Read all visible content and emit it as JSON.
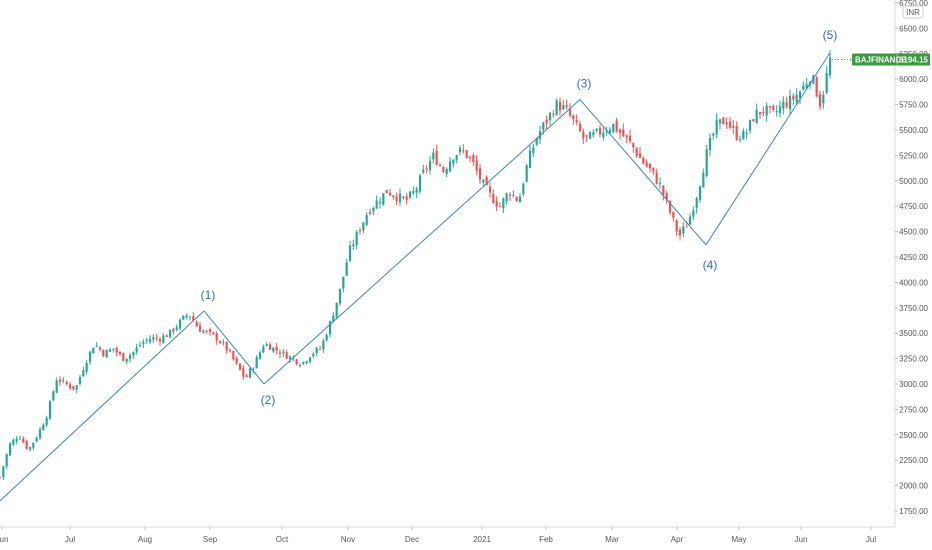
{
  "chart_data": {
    "type": "candlestick",
    "symbol": "BAJFINANCE",
    "last_price": "6194.15",
    "currency_label": "INR",
    "colors": {
      "up": "#26a69a",
      "down": "#ef5350",
      "wave_line": "#3d85c6",
      "wave_label": "#2f6fb5",
      "price_badge": "#3a9a3f",
      "axis_text": "#555555"
    },
    "ylim": [
      1500,
      6750
    ],
    "y_ticks": [
      1750,
      2000,
      2250,
      2500,
      2750,
      3000,
      3250,
      3500,
      3750,
      4000,
      4250,
      4500,
      4750,
      5000,
      5250,
      5500,
      5750,
      6000,
      6250,
      6500,
      6750
    ],
    "x_ticks": [
      "Jun",
      "Jul",
      "Aug",
      "Sep",
      "Oct",
      "Nov",
      "Dec",
      "2021",
      "Feb",
      "Mar",
      "Apr",
      "May",
      "Jun",
      "Jul"
    ],
    "wave_path": [
      {
        "label": "",
        "price": 1850
      },
      {
        "label": "(1)",
        "price": 3720
      },
      {
        "label": "(2)",
        "price": 3000
      },
      {
        "label": "(3)",
        "price": 5800
      },
      {
        "label": "(4)",
        "price": 4370
      },
      {
        "label": "(5)",
        "price": 6260
      }
    ],
    "close_path": [
      [
        0,
        2080
      ],
      [
        4,
        2400
      ],
      [
        8,
        2500
      ],
      [
        12,
        2350
      ],
      [
        16,
        2500
      ],
      [
        20,
        2700
      ],
      [
        24,
        3050
      ],
      [
        28,
        3000
      ],
      [
        32,
        2950
      ],
      [
        36,
        3200
      ],
      [
        40,
        3400
      ],
      [
        44,
        3300
      ],
      [
        48,
        3350
      ],
      [
        52,
        3250
      ],
      [
        56,
        3300
      ],
      [
        60,
        3400
      ],
      [
        64,
        3450
      ],
      [
        68,
        3450
      ],
      [
        72,
        3500
      ],
      [
        76,
        3600
      ],
      [
        80,
        3700
      ],
      [
        84,
        3550
      ],
      [
        88,
        3500
      ],
      [
        92,
        3450
      ],
      [
        96,
        3350
      ],
      [
        100,
        3200
      ],
      [
        104,
        3050
      ],
      [
        108,
        3200
      ],
      [
        112,
        3400
      ],
      [
        116,
        3350
      ],
      [
        120,
        3300
      ],
      [
        124,
        3250
      ],
      [
        128,
        3200
      ],
      [
        132,
        3300
      ],
      [
        136,
        3350
      ],
      [
        140,
        3600
      ],
      [
        144,
        3900
      ],
      [
        148,
        4300
      ],
      [
        152,
        4500
      ],
      [
        156,
        4700
      ],
      [
        160,
        4800
      ],
      [
        164,
        4900
      ],
      [
        168,
        4850
      ],
      [
        172,
        4800
      ],
      [
        176,
        4900
      ],
      [
        180,
        5100
      ],
      [
        184,
        5250
      ],
      [
        188,
        5100
      ],
      [
        192,
        5250
      ],
      [
        196,
        5300
      ],
      [
        200,
        5200
      ],
      [
        204,
        5000
      ],
      [
        208,
        4850
      ],
      [
        212,
        4750
      ],
      [
        216,
        4900
      ],
      [
        220,
        4800
      ],
      [
        224,
        5200
      ],
      [
        228,
        5450
      ],
      [
        232,
        5600
      ],
      [
        236,
        5750
      ],
      [
        240,
        5700
      ],
      [
        244,
        5550
      ],
      [
        248,
        5400
      ],
      [
        252,
        5450
      ],
      [
        256,
        5500
      ],
      [
        260,
        5550
      ],
      [
        264,
        5450
      ],
      [
        268,
        5350
      ],
      [
        272,
        5200
      ],
      [
        276,
        5100
      ],
      [
        280,
        4950
      ],
      [
        284,
        4700
      ],
      [
        288,
        4450
      ],
      [
        292,
        4600
      ],
      [
        296,
        4900
      ],
      [
        300,
        5300
      ],
      [
        304,
        5550
      ],
      [
        308,
        5600
      ],
      [
        312,
        5450
      ],
      [
        316,
        5450
      ],
      [
        320,
        5650
      ],
      [
        324,
        5700
      ],
      [
        328,
        5650
      ],
      [
        332,
        5750
      ],
      [
        336,
        5800
      ],
      [
        340,
        5900
      ],
      [
        344,
        6050
      ],
      [
        348,
        5750
      ],
      [
        352,
        6194.15
      ]
    ]
  }
}
